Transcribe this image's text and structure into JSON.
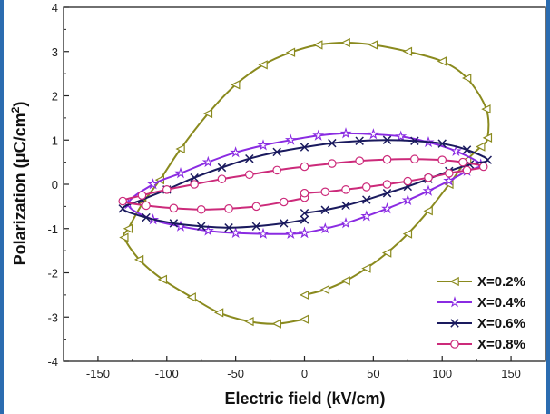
{
  "chart_data": {
    "type": "line",
    "xlabel": "Electric field (kV/cm)",
    "ylabel_main": "Polarization (μC/cm",
    "ylabel_sup": "2",
    "ylabel_tail": ")",
    "xlim": [
      -175,
      175
    ],
    "ylim": [
      -4,
      4
    ],
    "x_ticks": [
      -150,
      -100,
      -50,
      0,
      50,
      100,
      150
    ],
    "y_ticks": [
      -4,
      -3,
      -2,
      -1,
      0,
      1,
      2,
      3,
      4
    ],
    "grid": false,
    "legend_position": "bottom-right",
    "series": [
      {
        "name": "X=0.2%",
        "color": "#8a8a1e",
        "marker": "triangle-left",
        "points": [
          [
            0,
            -2.5
          ],
          [
            15,
            -2.38
          ],
          [
            30,
            -2.18
          ],
          [
            45,
            -1.9
          ],
          [
            60,
            -1.55
          ],
          [
            75,
            -1.12
          ],
          [
            90,
            -0.6
          ],
          [
            105,
            0.0
          ],
          [
            118,
            0.55
          ],
          [
            128,
            0.85
          ],
          [
            133,
            1.05
          ],
          [
            132,
            1.7
          ],
          [
            118,
            2.4
          ],
          [
            100,
            2.78
          ],
          [
            75,
            3.0
          ],
          [
            50,
            3.15
          ],
          [
            30,
            3.2
          ],
          [
            10,
            3.15
          ],
          [
            -10,
            2.98
          ],
          [
            -30,
            2.7
          ],
          [
            -50,
            2.25
          ],
          [
            -70,
            1.6
          ],
          [
            -90,
            0.8
          ],
          [
            -105,
            0.1
          ],
          [
            -118,
            -0.45
          ],
          [
            -128,
            -1.0
          ],
          [
            -131,
            -1.2
          ],
          [
            -120,
            -1.7
          ],
          [
            -103,
            -2.15
          ],
          [
            -82,
            -2.55
          ],
          [
            -62,
            -2.9
          ],
          [
            -40,
            -3.1
          ],
          [
            -20,
            -3.15
          ],
          [
            0,
            -3.05
          ]
        ]
      },
      {
        "name": "X=0.4%",
        "color": "#8a2be2",
        "marker": "star",
        "points": [
          [
            0,
            -1.1
          ],
          [
            15,
            -1.0
          ],
          [
            30,
            -0.88
          ],
          [
            45,
            -0.72
          ],
          [
            60,
            -0.55
          ],
          [
            75,
            -0.36
          ],
          [
            90,
            -0.15
          ],
          [
            105,
            0.08
          ],
          [
            118,
            0.3
          ],
          [
            128,
            0.45
          ],
          [
            110,
            0.75
          ],
          [
            90,
            0.95
          ],
          [
            70,
            1.08
          ],
          [
            50,
            1.13
          ],
          [
            30,
            1.15
          ],
          [
            10,
            1.1
          ],
          [
            -10,
            1.0
          ],
          [
            -30,
            0.88
          ],
          [
            -50,
            0.72
          ],
          [
            -70,
            0.5
          ],
          [
            -90,
            0.25
          ],
          [
            -110,
            0.0
          ],
          [
            -128,
            -0.45
          ],
          [
            -110,
            -0.8
          ],
          [
            -90,
            -0.95
          ],
          [
            -70,
            -1.05
          ],
          [
            -50,
            -1.1
          ],
          [
            -30,
            -1.12
          ],
          [
            -10,
            -1.12
          ],
          [
            0,
            -1.1
          ]
        ]
      },
      {
        "name": "X=0.6%",
        "color": "#1a1a5e",
        "marker": "x",
        "points": [
          [
            0,
            -0.65
          ],
          [
            15,
            -0.58
          ],
          [
            30,
            -0.48
          ],
          [
            45,
            -0.35
          ],
          [
            60,
            -0.2
          ],
          [
            75,
            -0.05
          ],
          [
            90,
            0.12
          ],
          [
            105,
            0.3
          ],
          [
            120,
            0.45
          ],
          [
            133,
            0.55
          ],
          [
            118,
            0.78
          ],
          [
            100,
            0.92
          ],
          [
            80,
            0.98
          ],
          [
            60,
            1.0
          ],
          [
            40,
            0.98
          ],
          [
            20,
            0.93
          ],
          [
            0,
            0.84
          ],
          [
            -20,
            0.73
          ],
          [
            -40,
            0.58
          ],
          [
            -60,
            0.38
          ],
          [
            -80,
            0.15
          ],
          [
            -100,
            -0.12
          ],
          [
            -118,
            -0.35
          ],
          [
            -132,
            -0.55
          ],
          [
            -115,
            -0.75
          ],
          [
            -95,
            -0.88
          ],
          [
            -75,
            -0.95
          ],
          [
            -55,
            -0.98
          ],
          [
            -35,
            -0.95
          ],
          [
            -15,
            -0.88
          ],
          [
            0,
            -0.8
          ]
        ]
      },
      {
        "name": "X=0.8%",
        "color": "#cc2a7a",
        "marker": "circle",
        "points": [
          [
            0,
            -0.2
          ],
          [
            15,
            -0.17
          ],
          [
            30,
            -0.12
          ],
          [
            45,
            -0.06
          ],
          [
            60,
            0.0
          ],
          [
            75,
            0.07
          ],
          [
            90,
            0.15
          ],
          [
            105,
            0.25
          ],
          [
            118,
            0.32
          ],
          [
            130,
            0.4
          ],
          [
            115,
            0.5
          ],
          [
            100,
            0.55
          ],
          [
            80,
            0.57
          ],
          [
            60,
            0.56
          ],
          [
            40,
            0.53
          ],
          [
            20,
            0.47
          ],
          [
            0,
            0.4
          ],
          [
            -20,
            0.32
          ],
          [
            -40,
            0.22
          ],
          [
            -60,
            0.12
          ],
          [
            -80,
            0.0
          ],
          [
            -100,
            -0.12
          ],
          [
            -118,
            -0.25
          ],
          [
            -132,
            -0.38
          ],
          [
            -115,
            -0.48
          ],
          [
            -95,
            -0.54
          ],
          [
            -75,
            -0.57
          ],
          [
            -55,
            -0.55
          ],
          [
            -35,
            -0.5
          ],
          [
            -15,
            -0.4
          ],
          [
            0,
            -0.3
          ],
          [
            0,
            -0.2
          ]
        ]
      }
    ]
  }
}
